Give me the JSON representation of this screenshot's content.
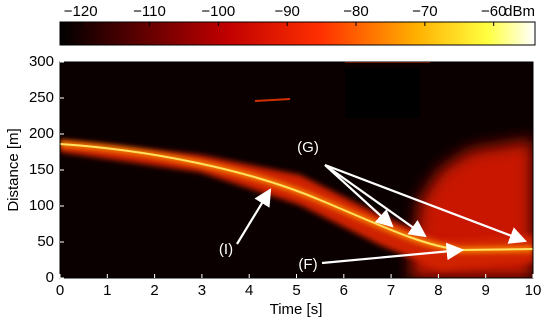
{
  "chart_data": {
    "type": "heatmap",
    "colormap": "hot",
    "xlabel": "Time [s]",
    "ylabel": "Distance [m]",
    "xlim": [
      0,
      10
    ],
    "xticks": [
      0,
      1,
      2,
      3,
      4,
      5,
      6,
      7,
      8,
      9,
      10
    ],
    "ylim": [
      0,
      300
    ],
    "yticks": [
      0,
      50,
      100,
      150,
      200,
      250,
      300
    ],
    "colorbar": {
      "unit": "dBm",
      "clim": [
        -123,
        -54
      ],
      "ticks": [
        {
          "value": -120,
          "label": "−120"
        },
        {
          "value": -110,
          "label": "−110"
        },
        {
          "value": -100,
          "label": "−100"
        },
        {
          "value": -90,
          "label": "−90"
        },
        {
          "value": -80,
          "label": "−80"
        },
        {
          "value": -70,
          "label": "−70"
        },
        {
          "value": -60,
          "label": "−60"
        }
      ]
    },
    "annotations": [
      "(G)",
      "(I)",
      "(F)"
    ]
  }
}
